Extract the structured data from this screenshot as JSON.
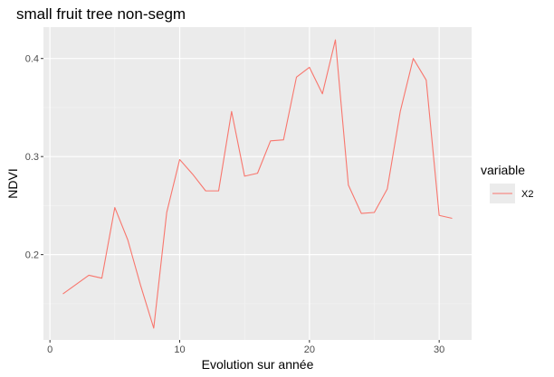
{
  "chart_data": {
    "type": "line",
    "title": "small fruit tree non-segm",
    "xlabel": "Evolution sur année",
    "ylabel": "NDVI",
    "xlim": [
      -0.5,
      32.5
    ],
    "ylim": [
      0.113,
      0.432
    ],
    "x_ticks": [
      0,
      10,
      20,
      30
    ],
    "x_minor_ticks": [
      5,
      15,
      25
    ],
    "y_ticks": [
      0.2,
      0.3,
      0.4
    ],
    "y_tick_labels": [
      "0.2",
      "0.3",
      "0.4"
    ],
    "y_minor_ticks": [
      0.15,
      0.25,
      0.35
    ],
    "grid": true,
    "legend": {
      "title": "variable",
      "position": "right"
    },
    "series": [
      {
        "name": "X2",
        "color": "#F8766D",
        "x": [
          1,
          3,
          4,
          5,
          6,
          7,
          8,
          9,
          10,
          11,
          12,
          13,
          14,
          15,
          16,
          17,
          18,
          19,
          20,
          21,
          22,
          23,
          24,
          25,
          26,
          27,
          28,
          29,
          30,
          31
        ],
        "y": [
          0.16,
          0.179,
          0.176,
          0.248,
          0.215,
          0.168,
          0.125,
          0.243,
          0.297,
          0.282,
          0.265,
          0.265,
          0.346,
          0.28,
          0.283,
          0.316,
          0.317,
          0.381,
          0.391,
          0.364,
          0.419,
          0.271,
          0.242,
          0.243,
          0.267,
          0.346,
          0.4,
          0.378,
          0.24,
          0.237
        ]
      }
    ]
  }
}
